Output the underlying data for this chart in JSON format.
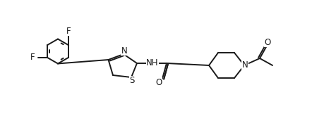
{
  "background": "#ffffff",
  "lc": "#1a1a1a",
  "lw": 1.4,
  "fs": 8.5,
  "dbo": 0.012,
  "xlim": [
    0,
    4.59
  ],
  "ylim": [
    0,
    1.75
  ],
  "scale": 1.0
}
